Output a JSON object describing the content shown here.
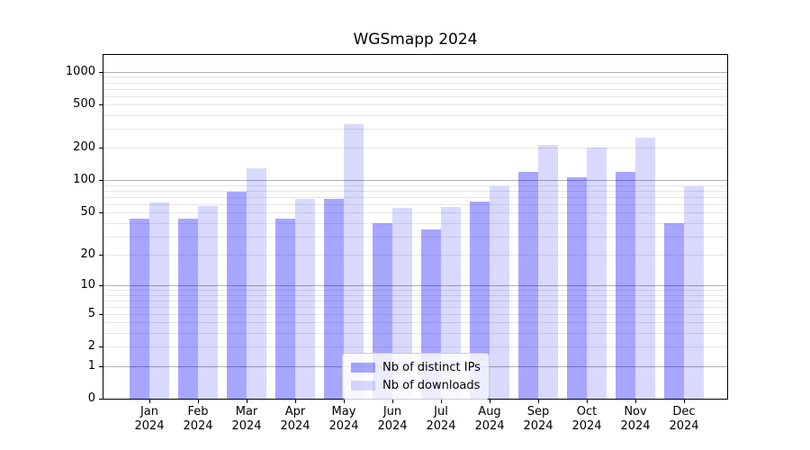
{
  "chart_data": {
    "type": "bar",
    "title": "WGSmapp 2024",
    "months": [
      "Jan",
      "Feb",
      "Mar",
      "Apr",
      "May",
      "Jun",
      "Jul",
      "Aug",
      "Sep",
      "Oct",
      "Nov",
      "Dec"
    ],
    "year_label": "2024",
    "categories": [
      "Jan 2024",
      "Feb 2024",
      "Mar 2024",
      "Apr 2024",
      "May 2024",
      "Jun 2024",
      "Jul 2024",
      "Aug 2024",
      "Sep 2024",
      "Oct 2024",
      "Nov 2024",
      "Dec 2024"
    ],
    "series": [
      {
        "name": "Nb of distinct IPs",
        "color": "rgba(0,0,255,0.35)",
        "color_hex_on_white": "#a6a6ff",
        "values": [
          44,
          44,
          78,
          44,
          68,
          40,
          35,
          63,
          119,
          106,
          120,
          40
        ]
      },
      {
        "name": "Nb of downloads",
        "color": "rgba(0,0,255,0.15)",
        "color_hex_on_white": "#d9d9ff",
        "values": [
          62,
          58,
          130,
          68,
          333,
          56,
          57,
          88,
          215,
          200,
          248,
          88
        ]
      }
    ],
    "yscale": "log10(value+1)",
    "ylim": [
      0,
      1435
    ],
    "y_ticks": [
      0,
      1,
      2,
      5,
      10,
      20,
      50,
      100,
      200,
      500,
      1000
    ],
    "major_grid_values": [
      1,
      10,
      100,
      1000
    ],
    "grid": "on",
    "legend_position": "lower center",
    "colors": {
      "major_gridline": "#b0b0b0",
      "minor_gridline": "#e6e6e6",
      "spine": "#000000",
      "text": "#000000",
      "background": "#ffffff"
    }
  }
}
